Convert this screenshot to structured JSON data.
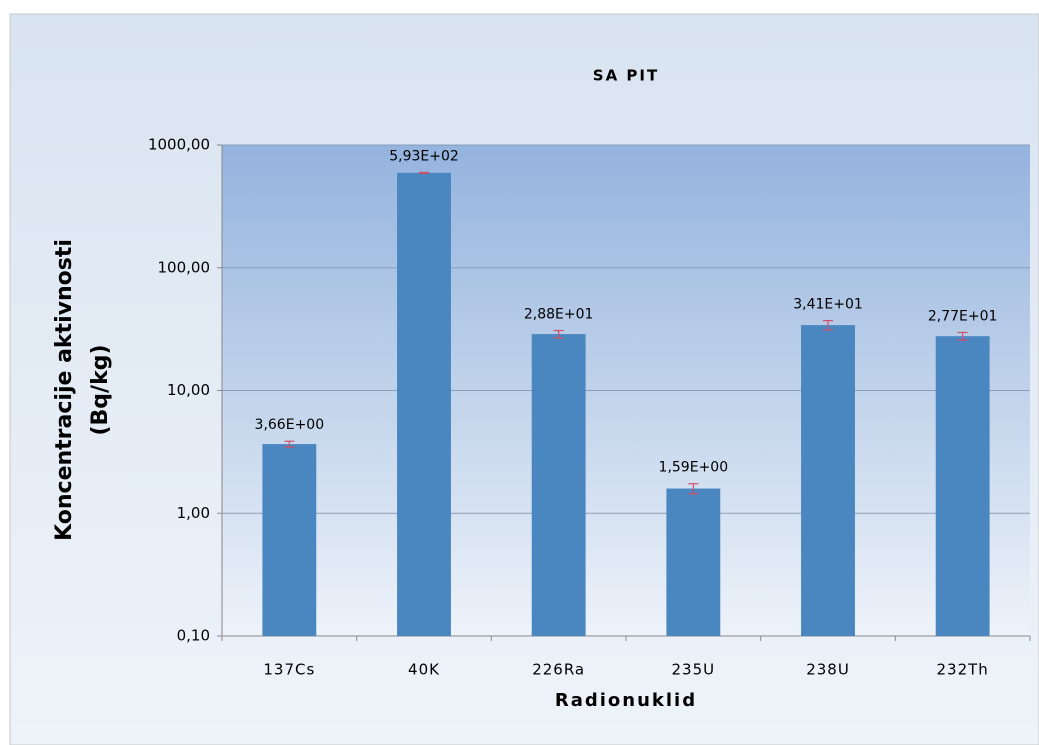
{
  "chart_data": {
    "type": "bar",
    "title": "SA PIT",
    "x_label": "Radionuklid",
    "y_label": [
      "Koncentracije aktivnosti",
      "(Bq/kg)"
    ],
    "categories": [
      "137Cs",
      "40K",
      "226Ra",
      "235U",
      "238U",
      "232Th"
    ],
    "values": [
      3.66,
      593,
      28.8,
      1.59,
      34.1,
      27.7
    ],
    "value_labels": [
      "3,66E+00",
      "5,93E+02",
      "2,88E+01",
      "1,59E+00",
      "3,41E+01",
      "2,77E+01"
    ],
    "errors": [
      0.2,
      5,
      2,
      0.15,
      3,
      2
    ],
    "color": "#4a86c0",
    "error_color": "#d0506a",
    "log_y": true,
    "grid": true,
    "ylim": [
      0.1,
      1000
    ],
    "yticks": [
      {
        "value": 0.1,
        "label": "0,10"
      },
      {
        "value": 1,
        "label": "1,00"
      },
      {
        "value": 10,
        "label": "10,00"
      },
      {
        "value": 100,
        "label": "100,00"
      },
      {
        "value": 1000,
        "label": "1000,00"
      }
    ]
  }
}
